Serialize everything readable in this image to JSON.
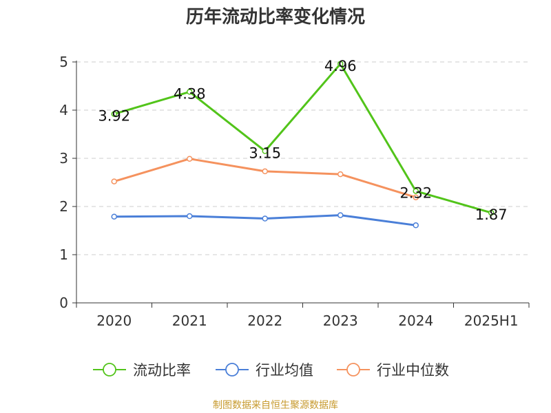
{
  "title": "历年流动比率变化情况",
  "source": "制图数据来自恒生聚源数据库",
  "chart_data": {
    "type": "line",
    "title": "历年流动比率变化情况",
    "categories": [
      "2020",
      "2021",
      "2022",
      "2023",
      "2024",
      "2025H1"
    ],
    "ylim": [
      0,
      5
    ],
    "yticks": [
      "0",
      "1",
      "2",
      "3",
      "4",
      "5"
    ],
    "grid": true,
    "legend_position": "bottom",
    "series": [
      {
        "name": "流动比率",
        "color": "#52c41a",
        "values": [
          3.92,
          4.38,
          3.15,
          4.96,
          2.32,
          1.87
        ],
        "labels": [
          "3.92",
          "4.38",
          "3.15",
          "4.96",
          "2.32",
          "1.87"
        ]
      },
      {
        "name": "行业均值",
        "color": "#4a7fd8",
        "values": [
          1.79,
          1.8,
          1.75,
          1.82,
          1.61,
          null
        ]
      },
      {
        "name": "行业中位数",
        "color": "#f5925e",
        "values": [
          2.52,
          2.99,
          2.73,
          2.67,
          2.19,
          null
        ]
      }
    ]
  }
}
